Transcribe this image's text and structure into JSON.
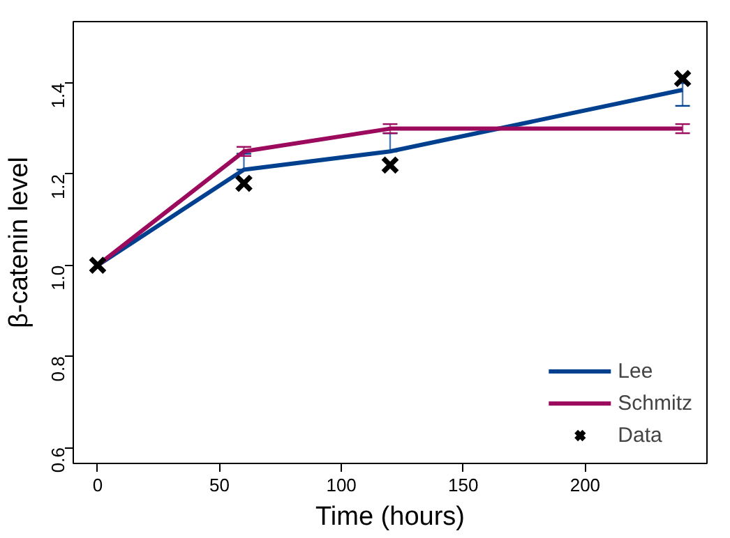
{
  "chart_data": {
    "type": "line",
    "xlabel": "Time (hours)",
    "ylabel": "β-catenin level",
    "x": [
      0,
      60,
      120,
      240
    ],
    "series": [
      {
        "name": "Lee",
        "color": "#00408f",
        "values": [
          1.0,
          1.21,
          1.25,
          1.385
        ],
        "errors": [
          null,
          [
            1.21,
            1.245
          ],
          [
            1.25,
            1.29
          ],
          [
            1.35,
            1.4
          ]
        ]
      },
      {
        "name": "Schmitz",
        "color": "#9b0a5c",
        "values": [
          1.0,
          1.25,
          1.3,
          1.3
        ],
        "errors": [
          null,
          [
            1.24,
            1.26
          ],
          [
            1.29,
            1.31
          ],
          [
            1.29,
            1.31
          ]
        ]
      },
      {
        "name": "Data",
        "type": "scatter",
        "marker": "cross",
        "color": "#000000",
        "values": [
          1.0,
          1.18,
          1.22,
          1.41
        ]
      }
    ],
    "xlim": [
      -10,
      250
    ],
    "ylim": [
      0.565,
      1.535
    ],
    "xticks": [
      0,
      50,
      100,
      150,
      200
    ],
    "yticks": [
      0.6,
      0.8,
      {
        "value": 1,
        "label": "1.0"
      },
      1.2,
      1.4
    ],
    "grid": false,
    "legend": "bottom right",
    "marker": "none"
  }
}
